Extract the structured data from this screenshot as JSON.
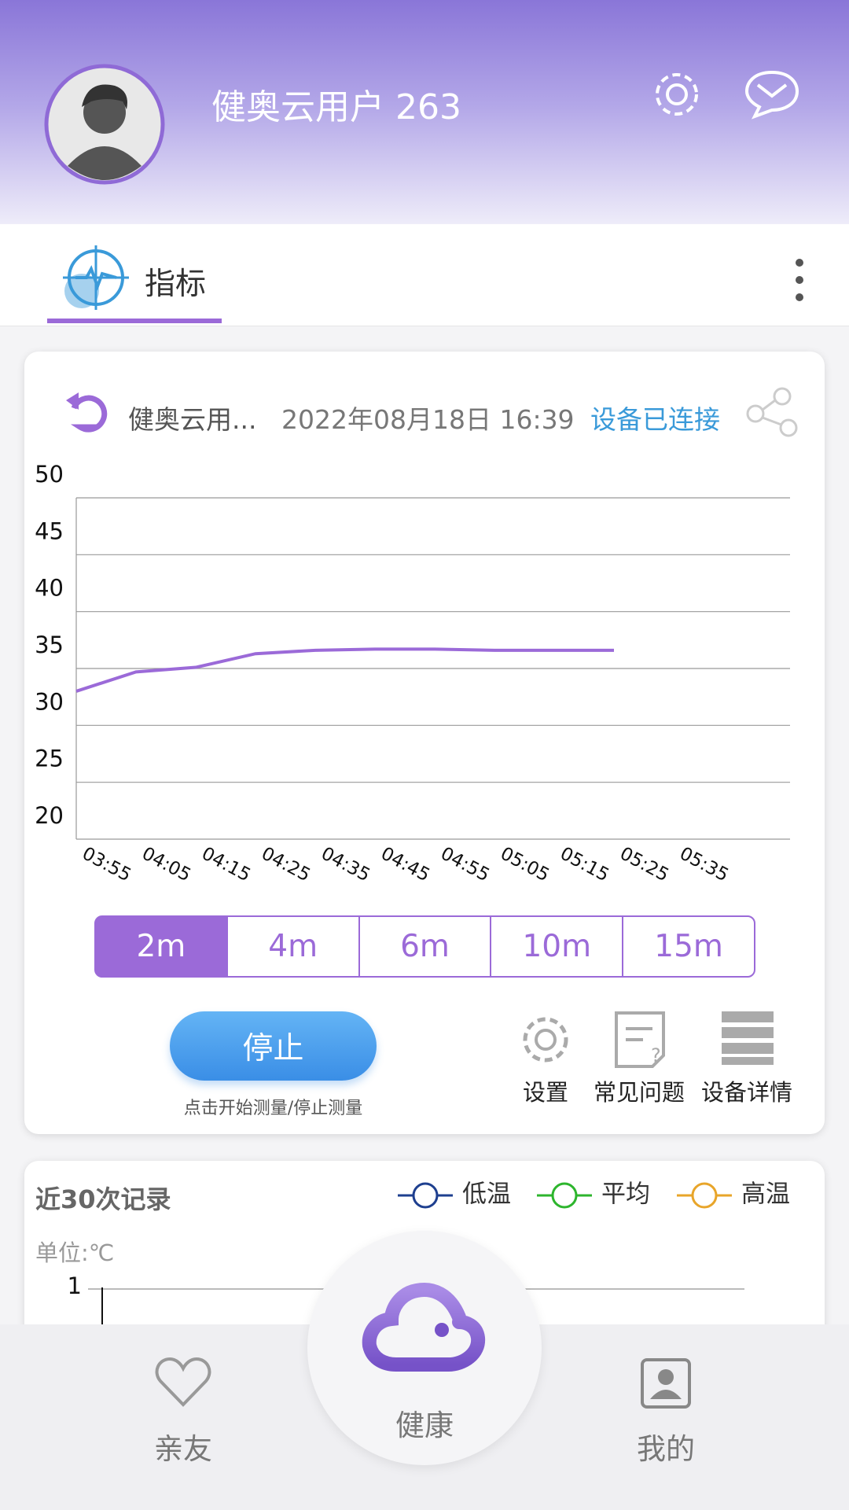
{
  "header": {
    "username": "健奥云用户 263"
  },
  "tab": {
    "label": "指标"
  },
  "card": {
    "user": "健奥云用...",
    "datetime": "2022年08月18日 16:39",
    "status": "设备已连接"
  },
  "chart_data": {
    "type": "line",
    "categories": [
      "03:55",
      "04:05",
      "04:15",
      "04:25",
      "04:35",
      "04:45",
      "04:55",
      "05:05",
      "05:15",
      "05:25",
      "05:35"
    ],
    "series": [
      {
        "color": "#9b6ad8",
        "values": [
          33.0,
          34.7,
          35.1,
          36.3,
          36.6,
          36.7,
          36.7,
          36.6,
          36.6,
          36.6,
          null
        ]
      }
    ],
    "ylim": [
      20,
      50
    ],
    "yticks": [
      20,
      25,
      30,
      35,
      40,
      45,
      50
    ],
    "grid": true
  },
  "ranges": [
    "2m",
    "4m",
    "6m",
    "10m",
    "15m"
  ],
  "stop_button": "停止",
  "stop_hint": "点击开始测量/停止测量",
  "tools": [
    "设置",
    "常见问题",
    "设备详情"
  ],
  "records": {
    "title": "近30次记录",
    "unit": "单位:℃",
    "legend": [
      {
        "name": "低温",
        "color": "#1e3f8f"
      },
      {
        "name": "平均",
        "color": "#2db52d"
      },
      {
        "name": "高温",
        "color": "#e8a52a"
      }
    ],
    "yticks": [
      1
    ]
  },
  "nav": {
    "left": "亲友",
    "center": "健康",
    "right": "我的"
  }
}
